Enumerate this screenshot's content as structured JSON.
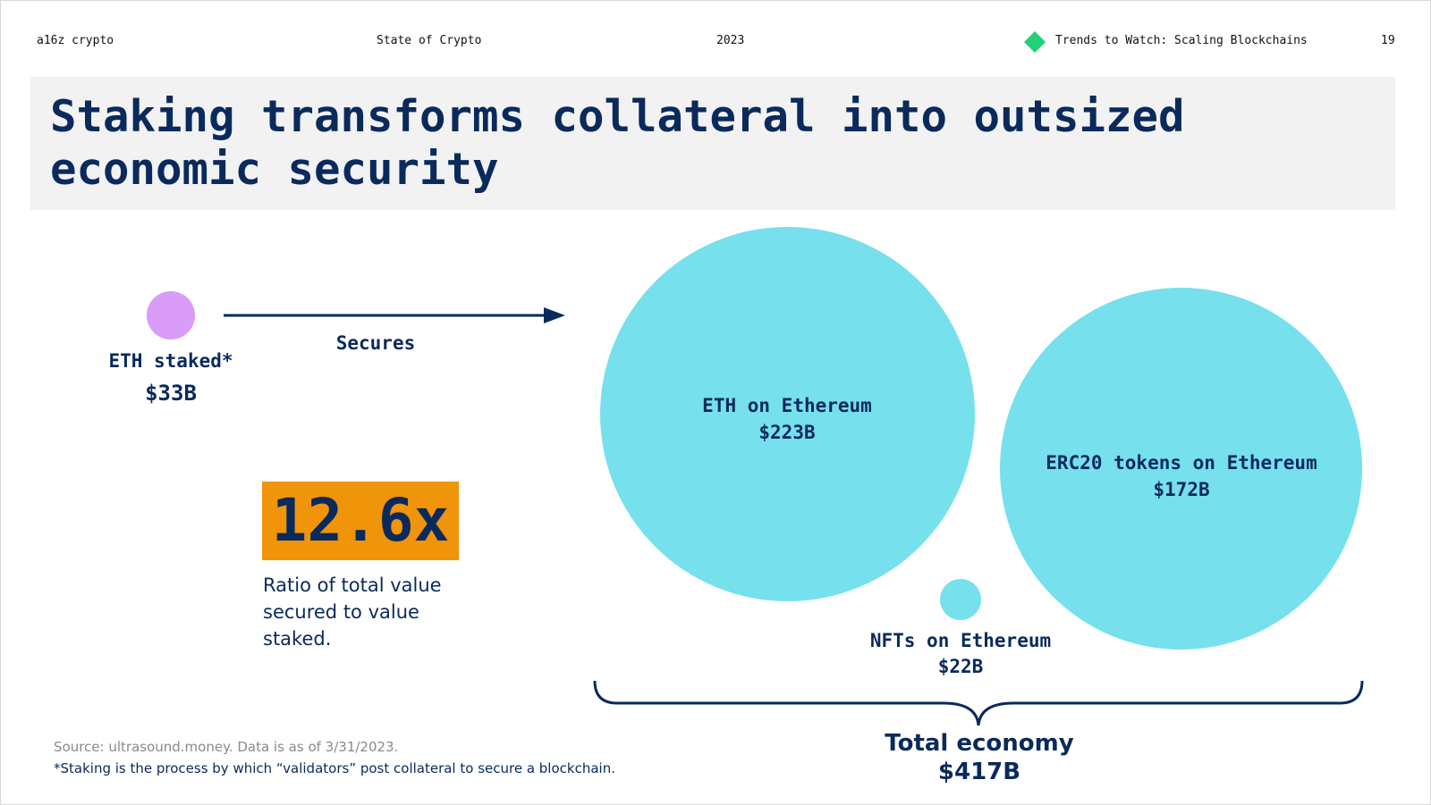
{
  "header": {
    "brand": "a16z crypto",
    "report": "State of Crypto",
    "year": "2023",
    "section": "Trends to Watch: Scaling Blockchains",
    "page": "19",
    "logo_color": "#22d07a"
  },
  "title": "Staking transforms collateral into outsized economic security",
  "staked": {
    "label": "ETH staked*",
    "value": "$33B",
    "color": "#d99cf7"
  },
  "arrow_label": "Secures",
  "ratio": {
    "value": "12.6x",
    "description": "Ratio of total value secured to value staked.",
    "color": "#f0940a"
  },
  "bubbles": [
    {
      "label": "ETH on Ethereum",
      "value": "$223B",
      "color": "#76e0ed"
    },
    {
      "label": "ERC20 tokens on Ethereum",
      "value": "$172B",
      "color": "#76e0ed"
    },
    {
      "label": "NFTs on Ethereum",
      "value": "$22B",
      "color": "#76e0ed"
    }
  ],
  "total": {
    "label": "Total economy",
    "value": "$417B"
  },
  "source": "Source: ultrasound.money. Data is as of 3/31/2023.",
  "footnote": "*Staking is the process by which “validators” post collateral to secure a blockchain."
}
